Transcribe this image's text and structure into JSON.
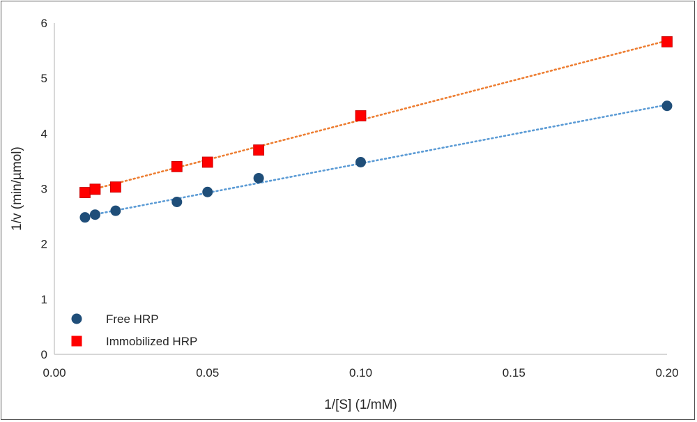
{
  "chart_data": {
    "type": "scatter",
    "title": "",
    "xlabel": "1/[S] (1/mM)",
    "ylabel": "1/v (min/µmol)",
    "xlim": [
      0,
      0.2
    ],
    "ylim": [
      0,
      6
    ],
    "x_ticks": [
      "0.00",
      "0.05",
      "0.10",
      "0.15",
      "0.20"
    ],
    "y_ticks": [
      "0",
      "1",
      "2",
      "3",
      "4",
      "5",
      "6"
    ],
    "grid": false,
    "legend_position": "bottom-left",
    "series": [
      {
        "name": "Free HRP",
        "marker": "circle",
        "color": "#1f4e79",
        "trendline_color": "#5b9bd5",
        "x": [
          0.01,
          0.0133,
          0.02,
          0.04,
          0.05,
          0.0667,
          0.1,
          0.2
        ],
        "y": [
          2.48,
          2.53,
          2.6,
          2.76,
          2.94,
          3.19,
          3.48,
          4.5
        ],
        "trendline": {
          "type": "linear",
          "x0": 0.01,
          "y0": 2.5,
          "x1": 0.2,
          "y1": 4.52
        }
      },
      {
        "name": "Immobilized HRP",
        "marker": "square",
        "color": "#ff0000",
        "trendline_color": "#ed7d31",
        "x": [
          0.01,
          0.0133,
          0.02,
          0.04,
          0.05,
          0.0667,
          0.1,
          0.2
        ],
        "y": [
          2.93,
          2.99,
          3.03,
          3.4,
          3.48,
          3.7,
          4.32,
          5.66
        ],
        "trendline": {
          "type": "linear",
          "x0": 0.01,
          "y0": 2.95,
          "x1": 0.2,
          "y1": 5.68
        }
      }
    ]
  }
}
